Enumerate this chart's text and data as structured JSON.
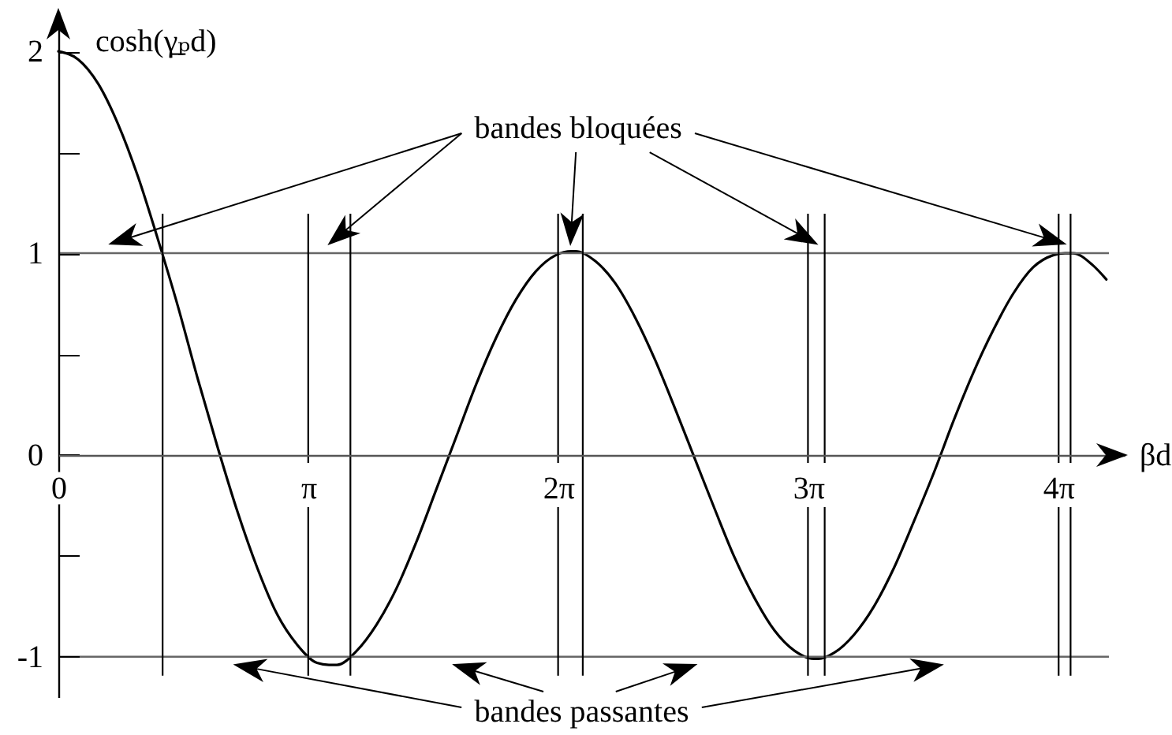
{
  "chart_data": {
    "type": "line",
    "xlabel": "βd",
    "ylabel": "cosh(γ̲ₚd)",
    "x": [
      0,
      0.25,
      0.5,
      0.75,
      1,
      1.25,
      1.5,
      1.75,
      2,
      2.25,
      2.5,
      2.75,
      3,
      3.25,
      3.4,
      3.5,
      3.75,
      4,
      4.25,
      4.5,
      4.75,
      5,
      5.25,
      5.5,
      5.75,
      6,
      6.25,
      6.45,
      6.5,
      6.75,
      7,
      7.25,
      7.5,
      7.75,
      8,
      8.25,
      8.5,
      8.75,
      9,
      9.25,
      9.5,
      9.55,
      9.75,
      10,
      10.25,
      10.5,
      10.75,
      11,
      11.25,
      11.5,
      11.75,
      12,
      12.25,
      12.5,
      12.65,
      12.75,
      13,
      13.17
    ],
    "series": [
      {
        "color": "#000000",
        "values": [
          2,
          1.96,
          1.84,
          1.64,
          1.38,
          1.07,
          0.74,
          0.38,
          0.04,
          -0.28,
          -0.56,
          -0.79,
          -0.94,
          -1.03,
          -1.04,
          -1.04,
          -0.97,
          -0.84,
          -0.66,
          -0.43,
          -0.17,
          0.09,
          0.35,
          0.58,
          0.77,
          0.91,
          0.99,
          1.01,
          1.01,
          0.96,
          0.85,
          0.68,
          0.47,
          0.23,
          -0.02,
          -0.27,
          -0.51,
          -0.71,
          -0.87,
          -0.97,
          -1.01,
          -1.01,
          -0.98,
          -0.89,
          -0.75,
          -0.56,
          -0.33,
          -0.09,
          0.17,
          0.41,
          0.62,
          0.8,
          0.93,
          0.99,
          1,
          1,
          0.94,
          0.87
        ]
      }
    ],
    "xlim": [
      0,
      13.4
    ],
    "ylim": [
      -1.2,
      2.2
    ],
    "xticks": [
      0,
      {
        "value": 3.1416,
        "label": "π"
      },
      {
        "value": 6.2832,
        "label": "2π"
      },
      {
        "value": 9.4248,
        "label": "3π"
      },
      {
        "value": 12.5664,
        "label": "4π"
      }
    ],
    "yticks": [
      -1,
      {
        "value": -0.5,
        "label": null
      },
      0,
      {
        "value": 0.5,
        "label": null
      },
      1,
      {
        "value": 1.5,
        "label": null
      },
      2
    ],
    "ref_lines": [
      {
        "axis": "y",
        "value": 1,
        "color": "#666666"
      },
      {
        "axis": "y",
        "value": -1,
        "color": "#666666"
      },
      {
        "axis": "x",
        "value": 1.31,
        "color": "#000000"
      },
      {
        "axis": "x",
        "value": 3.14,
        "color": "#000000"
      },
      {
        "axis": "x",
        "value": 3.67,
        "color": "#000000"
      },
      {
        "axis": "x",
        "value": 6.28,
        "color": "#000000"
      },
      {
        "axis": "x",
        "value": 6.59,
        "color": "#000000"
      },
      {
        "axis": "x",
        "value": 9.42,
        "color": "#000000"
      },
      {
        "axis": "x",
        "value": 9.63,
        "color": "#000000"
      },
      {
        "axis": "x",
        "value": 12.57,
        "color": "#000000"
      },
      {
        "axis": "x",
        "value": 12.72,
        "color": "#000000"
      }
    ],
    "annotations": [
      "bandes bloquées",
      {
        "text": "bandes passantes",
        "y": -1.04
      }
    ]
  }
}
